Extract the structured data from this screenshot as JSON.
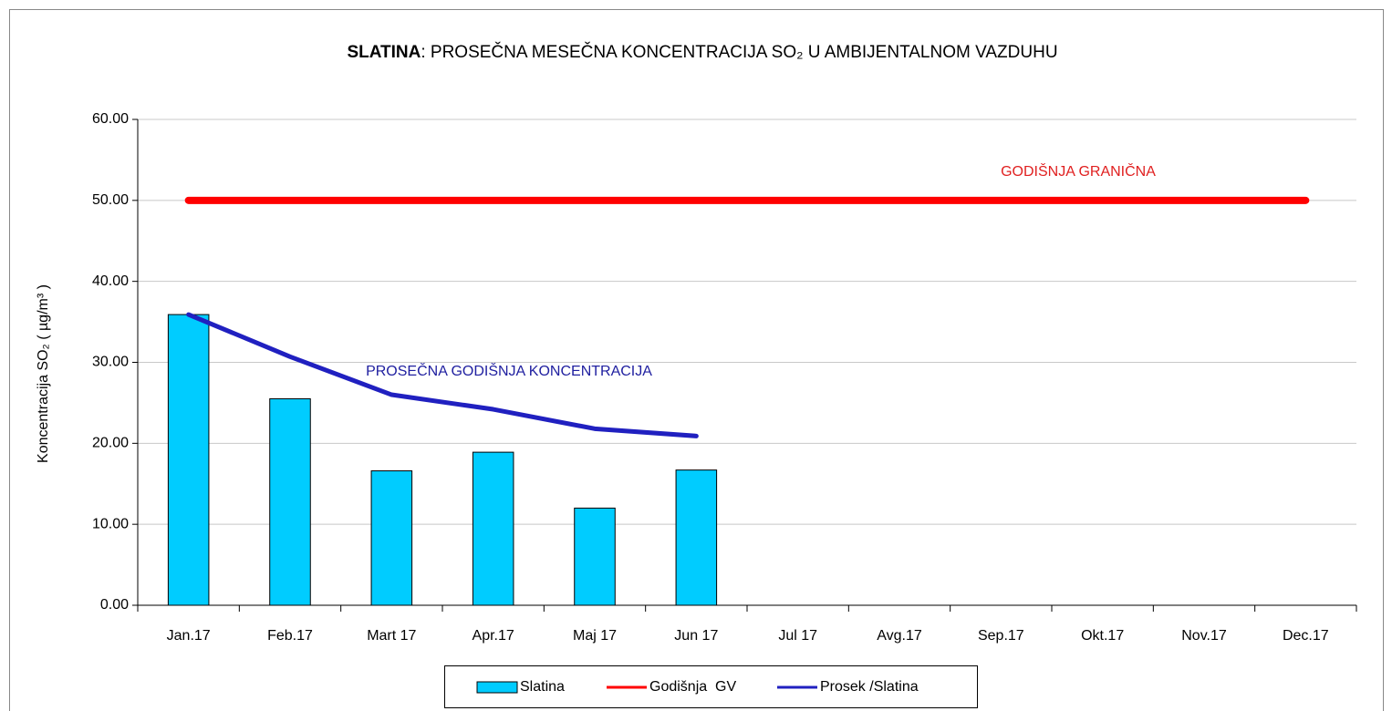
{
  "chart_data": {
    "type": "bar",
    "title": "SLATINA: PROSEČNA MESEČNA KONCENTRACIJA SO₂ U AMBIJENTALNOM VAZDUHU",
    "y_label": "Koncentracija SO₂ ( µg/m³ )",
    "annotations": [
      "GODIŠNJA GRANIČNA",
      "PROSEČNA GODIŠNJA KONCENTRACIJA"
    ],
    "categories": [
      "Jan.17",
      "Feb.17",
      "Mart 17",
      "Apr.17",
      "Maj 17",
      "Jun 17",
      "Jul 17",
      "Avg.17",
      "Sep.17",
      "Okt.17",
      "Nov.17",
      "Dec.17"
    ],
    "series": [
      {
        "name": "Slatina",
        "type": "bar",
        "color": "#00ccff",
        "values": [
          35.9,
          25.5,
          16.6,
          18.9,
          12.0,
          16.7,
          null,
          null,
          null,
          null,
          null,
          null
        ]
      },
      {
        "name": "Godišnja  GV",
        "type": "line",
        "color": "#ff0000",
        "values": [
          50,
          50,
          50,
          50,
          50,
          50,
          50,
          50,
          50,
          50,
          50,
          50
        ]
      },
      {
        "name": "Prosek /Slatina",
        "type": "line",
        "color": "#2020c0",
        "values": [
          35.9,
          30.7,
          26.0,
          24.2,
          21.8,
          20.9,
          null,
          null,
          null,
          null,
          null,
          null
        ]
      }
    ],
    "ylim": [
      0,
      60
    ],
    "yticks": [
      {
        "value": 0,
        "label": "0.00"
      },
      {
        "value": 10,
        "label": "10.00"
      },
      {
        "value": 20,
        "label": "20.00"
      },
      {
        "value": 30,
        "label": "30.00"
      },
      {
        "value": 40,
        "label": "40.00"
      },
      {
        "value": 50,
        "label": "50.00"
      },
      {
        "value": 60,
        "label": "60.00"
      }
    ],
    "grid": true,
    "legend": "bottom"
  }
}
